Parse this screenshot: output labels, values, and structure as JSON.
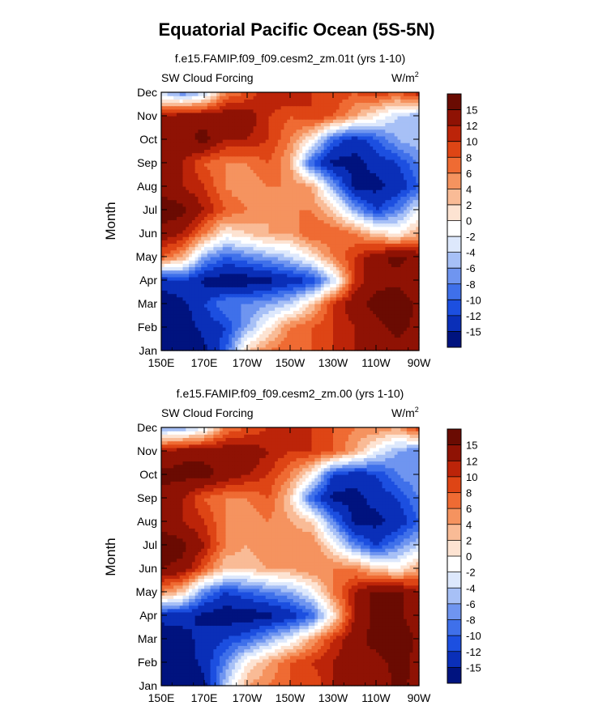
{
  "figure": {
    "title": "Equatorial Pacific Ocean (5S-5N)"
  },
  "colorscale": {
    "colors": [
      "#00137f",
      "#0a2fb8",
      "#1c4fe0",
      "#3f70ea",
      "#6f95f0",
      "#a7c0f6",
      "#dde8fc",
      "#ffffff",
      "#fde3d2",
      "#f9bb96",
      "#f5935f",
      "#ef6b33",
      "#de4515",
      "#bc2409",
      "#8f1204",
      "#6a0b02"
    ],
    "levels": [
      -15,
      -12,
      -10,
      -8,
      -6,
      -4,
      -2,
      0,
      2,
      4,
      6,
      8,
      10,
      12,
      15
    ],
    "level_labels": [
      "-15",
      "-12",
      "-10",
      "-8",
      "-6",
      "-4",
      "-2",
      "0",
      "2",
      "4",
      "6",
      "8",
      "10",
      "12",
      "15"
    ]
  },
  "chart_data": [
    {
      "type": "heatmap",
      "title": "f.e15.FAMIP.f09_f09.cesm2_zm.01t (yrs 1-10)",
      "left_label": "SW Cloud Forcing",
      "units_base": "W/m",
      "units_exp": "2",
      "ylabel": "Month",
      "xlabel": "",
      "x": [
        150,
        160,
        170,
        180,
        190,
        200,
        210,
        220,
        230,
        240,
        250,
        260,
        270
      ],
      "x_tick_labels": [
        "150E",
        "170E",
        "170W",
        "150W",
        "130W",
        "110W",
        "90W"
      ],
      "y_tick_labels": [
        "Jan",
        "Feb",
        "Mar",
        "Apr",
        "May",
        "Jun",
        "Jul",
        "Aug",
        "Sep",
        "Oct",
        "Nov",
        "Dec"
      ],
      "z": [
        [
          -18,
          -18,
          -16,
          -10,
          2,
          6,
          8,
          8,
          10,
          12,
          12,
          14,
          12
        ],
        [
          -18,
          -17,
          -14,
          -12,
          -6,
          0,
          6,
          8,
          10,
          12,
          14,
          16,
          14
        ],
        [
          -17,
          -16,
          -12,
          -8,
          -8,
          -6,
          -4,
          2,
          10,
          14,
          16,
          18,
          14
        ],
        [
          -14,
          -12,
          -16,
          -17,
          -17,
          -16,
          -14,
          -12,
          -4,
          10,
          14,
          14,
          12
        ],
        [
          8,
          4,
          -6,
          -10,
          -8,
          -6,
          -4,
          0,
          6,
          10,
          14,
          16,
          14
        ],
        [
          14,
          12,
          6,
          0,
          2,
          4,
          4,
          8,
          8,
          6,
          2,
          0,
          4
        ],
        [
          17,
          16,
          12,
          8,
          6,
          4,
          6,
          6,
          2,
          -6,
          -12,
          -8,
          -2
        ],
        [
          14,
          12,
          10,
          6,
          4,
          6,
          6,
          4,
          -6,
          -16,
          -16,
          -14,
          -10
        ],
        [
          14,
          12,
          8,
          6,
          6,
          8,
          4,
          -10,
          -16,
          -16,
          -14,
          -12,
          -8
        ],
        [
          14,
          14,
          16,
          12,
          12,
          10,
          6,
          0,
          -10,
          -14,
          -10,
          -6,
          -4
        ],
        [
          12,
          14,
          14,
          14,
          14,
          10,
          8,
          10,
          8,
          4,
          0,
          -4,
          -6
        ],
        [
          -4,
          -8,
          -4,
          6,
          8,
          12,
          12,
          10,
          10,
          8,
          10,
          8,
          12
        ]
      ]
    },
    {
      "type": "heatmap",
      "title": "f.e15.FAMIP.f09_f09.cesm2_zm.00 (yrs 1-10)",
      "left_label": "SW Cloud Forcing",
      "units_base": "W/m",
      "units_exp": "2",
      "ylabel": "Month",
      "xlabel": "",
      "x": [
        150,
        160,
        170,
        180,
        190,
        200,
        210,
        220,
        230,
        240,
        250,
        260,
        270
      ],
      "x_tick_labels": [
        "150E",
        "170E",
        "170W",
        "150W",
        "130W",
        "110W",
        "90W"
      ],
      "y_tick_labels": [
        "Jan",
        "Feb",
        "Mar",
        "Apr",
        "May",
        "Jun",
        "Jul",
        "Aug",
        "Sep",
        "Oct",
        "Nov",
        "Dec"
      ],
      "z": [
        [
          -18,
          -18,
          -16,
          -4,
          4,
          6,
          8,
          8,
          12,
          14,
          12,
          16,
          14
        ],
        [
          -18,
          -17,
          -14,
          -8,
          0,
          4,
          8,
          10,
          12,
          14,
          14,
          16,
          14
        ],
        [
          -17,
          -16,
          -14,
          -12,
          -10,
          -6,
          -2,
          4,
          10,
          14,
          16,
          18,
          14
        ],
        [
          -14,
          -14,
          -16,
          -17,
          -17,
          -16,
          -14,
          -10,
          0,
          12,
          16,
          16,
          12
        ],
        [
          6,
          2,
          -8,
          -12,
          -10,
          -8,
          -6,
          -2,
          6,
          12,
          16,
          16,
          12
        ],
        [
          15,
          14,
          8,
          2,
          2,
          4,
          4,
          6,
          6,
          6,
          2,
          0,
          4
        ],
        [
          17,
          16,
          12,
          6,
          4,
          6,
          6,
          6,
          0,
          -8,
          -12,
          -8,
          -4
        ],
        [
          14,
          12,
          10,
          6,
          4,
          6,
          4,
          2,
          -8,
          -16,
          -16,
          -14,
          -10
        ],
        [
          14,
          12,
          8,
          6,
          6,
          8,
          2,
          -10,
          -16,
          -16,
          -14,
          -12,
          -8
        ],
        [
          16,
          16,
          16,
          14,
          12,
          10,
          6,
          0,
          -12,
          -14,
          -12,
          -8,
          -6
        ],
        [
          12,
          14,
          14,
          14,
          14,
          12,
          10,
          10,
          8,
          4,
          -2,
          -6,
          -8
        ],
        [
          -6,
          -6,
          -2,
          6,
          8,
          10,
          12,
          10,
          8,
          6,
          6,
          4,
          10
        ]
      ]
    }
  ]
}
